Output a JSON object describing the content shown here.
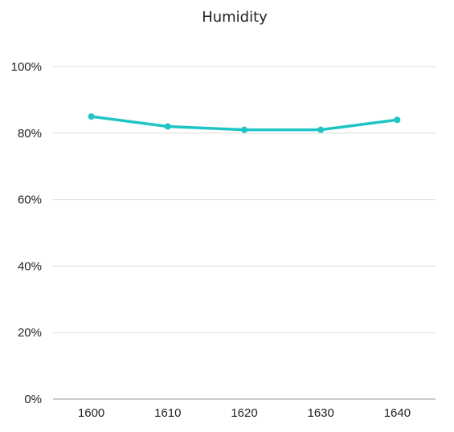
{
  "chart_data": {
    "type": "line",
    "title": "Humidity",
    "categories": [
      "1600",
      "1610",
      "1620",
      "1630",
      "1640"
    ],
    "series": [
      {
        "values": [
          85,
          82,
          81,
          81,
          84
        ],
        "color": "#1fc4c4"
      }
    ],
    "ylim": [
      0,
      100
    ],
    "yticks": [
      0,
      20,
      40,
      60,
      80,
      100
    ],
    "ytick_labels": [
      "0%",
      "20%",
      "40%",
      "60%",
      "80%",
      "100%"
    ],
    "grid": true,
    "legend": "none"
  }
}
